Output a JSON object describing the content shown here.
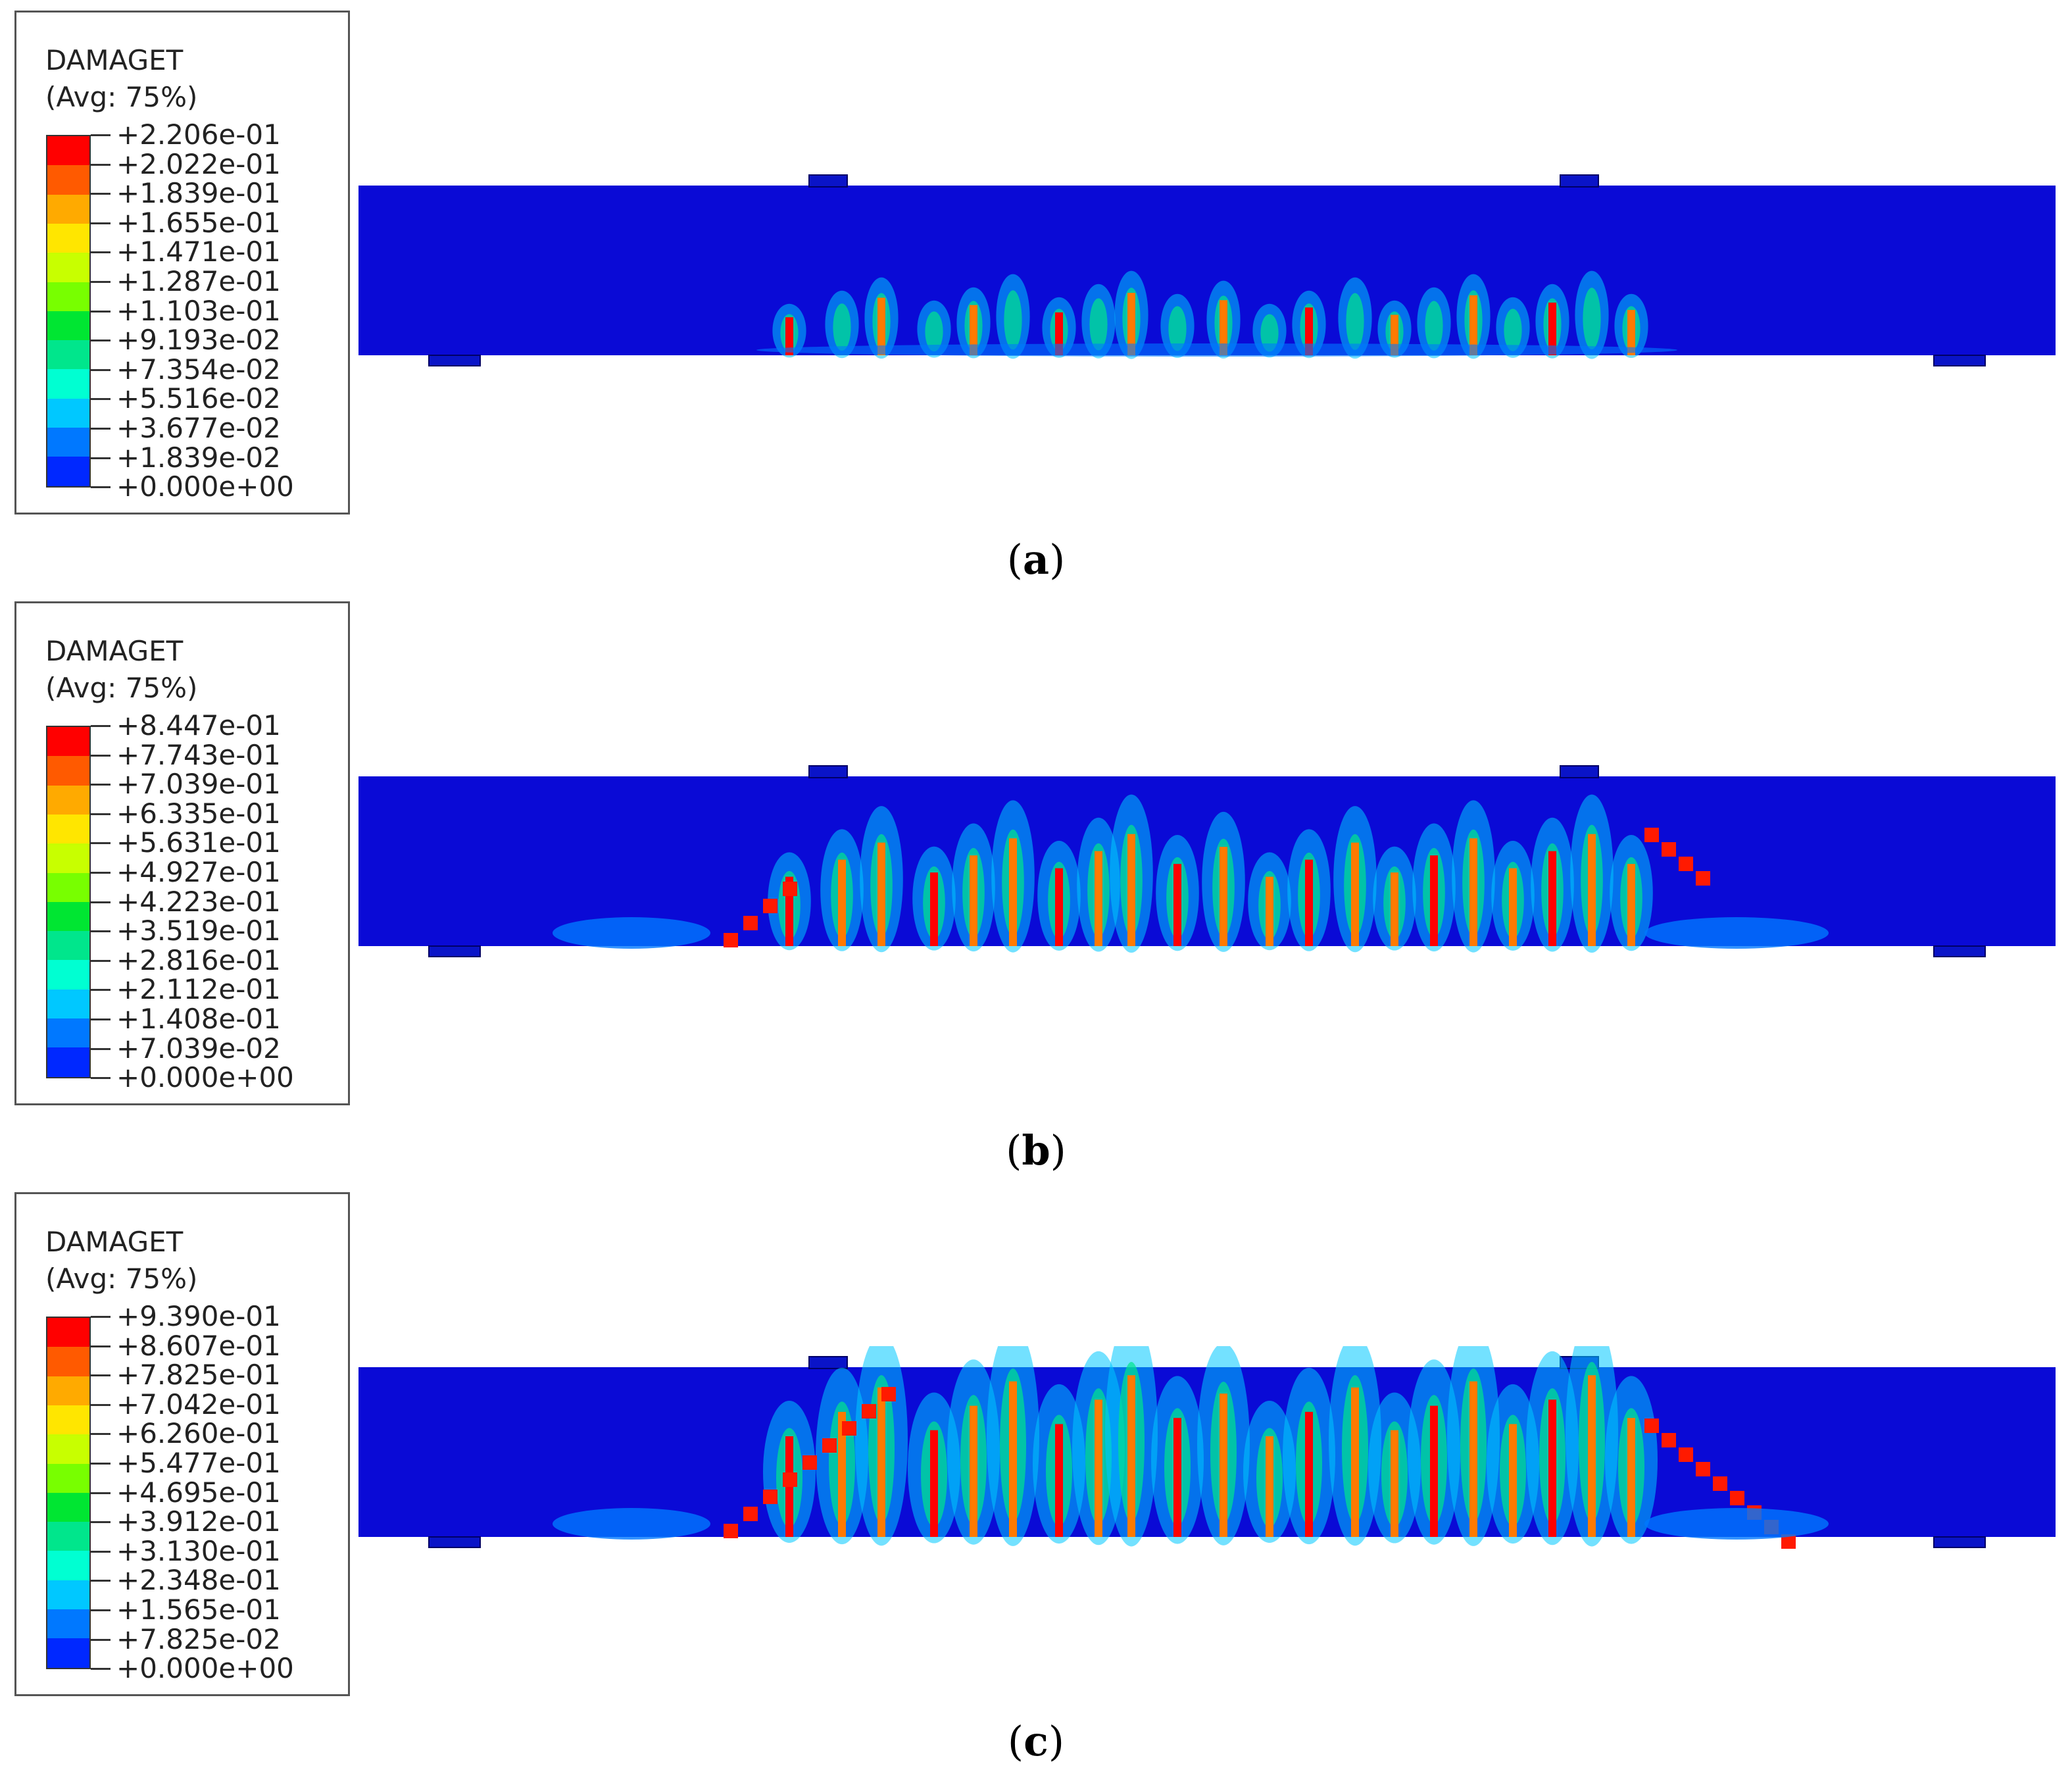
{
  "colors": {
    "beam": "#0a0ad6",
    "support": "#0a14c8",
    "scale": [
      "#ff0000",
      "#ff5a00",
      "#ffaa00",
      "#ffe600",
      "#c8ff00",
      "#78ff00",
      "#00e632",
      "#00e68c",
      "#00ffd2",
      "#00c8ff",
      "#0078ff",
      "#0028ff"
    ]
  },
  "panels": [
    {
      "legend_title": "DAMAGET",
      "legend_subtitle": "(Avg: 75%)",
      "scale_values": [
        "+2.206e-01",
        "+2.022e-01",
        "+1.839e-01",
        "+1.655e-01",
        "+1.471e-01",
        "+1.287e-01",
        "+1.103e-01",
        "+9.193e-02",
        "+7.354e-02",
        "+5.516e-02",
        "+3.677e-02",
        "+1.839e-02",
        "+0.000e+00"
      ],
      "caption_prefix": "(",
      "caption_letter": "a",
      "caption_suffix": ")",
      "damage_level": 0.2
    },
    {
      "legend_title": "DAMAGET",
      "legend_subtitle": "(Avg: 75%)",
      "scale_values": [
        "+8.447e-01",
        "+7.743e-01",
        "+7.039e-01",
        "+6.335e-01",
        "+5.631e-01",
        "+4.927e-01",
        "+4.223e-01",
        "+3.519e-01",
        "+2.816e-01",
        "+2.112e-01",
        "+1.408e-01",
        "+7.039e-02",
        "+0.000e+00"
      ],
      "caption_prefix": "(",
      "caption_letter": "b",
      "caption_suffix": ")",
      "damage_level": 0.6
    },
    {
      "legend_title": "DAMAGET",
      "legend_subtitle": "(Avg: 75%)",
      "scale_values": [
        "+9.390e-01",
        "+8.607e-01",
        "+7.825e-01",
        "+7.042e-01",
        "+6.260e-01",
        "+5.477e-01",
        "+4.695e-01",
        "+3.912e-01",
        "+3.130e-01",
        "+2.348e-01",
        "+1.565e-01",
        "+7.825e-02",
        "+0.000e+00"
      ],
      "caption_prefix": "(",
      "caption_letter": "c",
      "caption_suffix": ")",
      "damage_level": 1.0
    }
  ]
}
